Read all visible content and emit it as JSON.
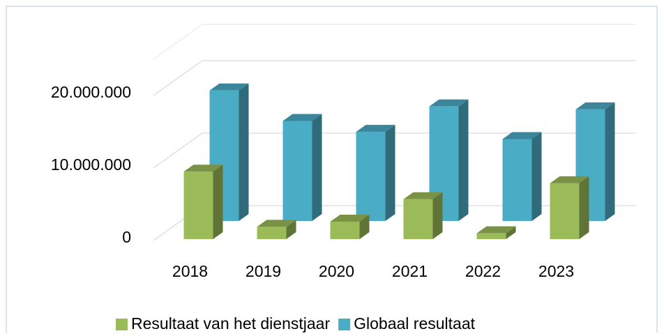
{
  "chart_data": {
    "type": "bar3d",
    "categories": [
      "2018",
      "2019",
      "2020",
      "2021",
      "2022",
      "2023"
    ],
    "series": [
      {
        "name": "Resultaat van het dienstjaar",
        "color": "#9bbb59",
        "values": [
          9300000,
          1700000,
          2400000,
          5500000,
          800000,
          7700000
        ]
      },
      {
        "name": "Globaal resultaat",
        "color": "#4bacc6",
        "values": [
          18000000,
          13800000,
          12300000,
          15800000,
          11300000,
          15400000
        ]
      }
    ],
    "ylim": [
      0,
      25000000
    ],
    "yticks": [
      0,
      {
        "value": 10000000,
        "label": "10.000.000"
      },
      {
        "value": 20000000,
        "label": "20.000.000"
      }
    ],
    "grid": true,
    "legend": "bottom"
  }
}
